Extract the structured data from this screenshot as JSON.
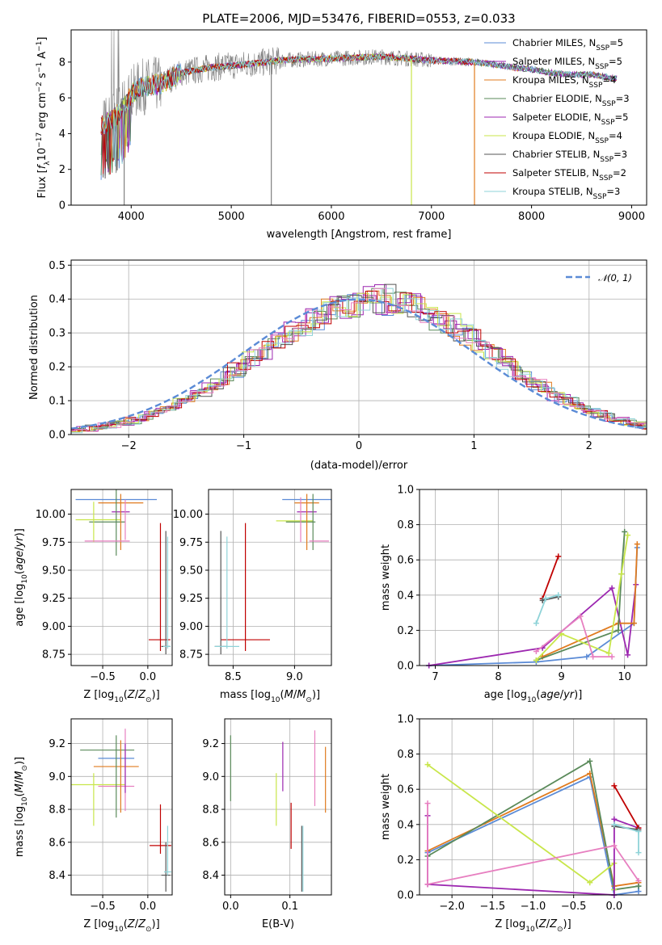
{
  "colors": {
    "Chabrier MILES": "#5b8bd6",
    "Salpeter MILES": "#9c27b0",
    "Kroupa MILES": "#e07b1f",
    "Chabrier ELODIE": "#5a8a5a",
    "Salpeter ELODIE": "#9c27b0",
    "Kroupa ELODIE": "#c8e64a",
    "Chabrier STELIB": "#555555",
    "Salpeter STELIB": "#c00000",
    "Kroupa STELIB": "#8fd3d8",
    "pink": "#e77fc0",
    "data": "#808080",
    "normal": "#5b8bd6"
  },
  "chart_data": [
    {
      "id": "spectrum",
      "type": "line",
      "title": "PLATE=2006, MJD=53476, FIBERID=0553, z=0.033",
      "xlabel": "wavelength [Angstrom, rest frame]",
      "ylabel": "Flux [f_λ10^-17 erg cm^-2 s^-1 A^-1]",
      "xlim": [
        3400,
        9150
      ],
      "ylim": [
        0,
        9.8
      ],
      "xticks": [
        4000,
        5000,
        6000,
        7000,
        8000,
        9000
      ],
      "yticks": [
        0,
        2,
        4,
        6,
        8
      ],
      "grid": false,
      "legend_position": "top-right",
      "legend": [
        {
          "name": "Chabrier MILES, N_SSP=5",
          "color": "#5b8bd6"
        },
        {
          "name": "Salpeter MILES, N_SSP=5",
          "color": "#9c27b0"
        },
        {
          "name": "Kroupa MILES, N_SSP=4",
          "color": "#e07b1f"
        },
        {
          "name": "Chabrier ELODIE, N_SSP=3",
          "color": "#5a8a5a"
        },
        {
          "name": "Salpeter ELODIE, N_SSP=5",
          "color": "#9c27b0"
        },
        {
          "name": "Kroupa ELODIE, N_SSP=4",
          "color": "#c8e64a"
        },
        {
          "name": "Chabrier STELIB, N_SSP=3",
          "color": "#555555"
        },
        {
          "name": "Salpeter STELIB, N_SSP=2",
          "color": "#c00000"
        },
        {
          "name": "Kroupa STELIB, N_SSP=3",
          "color": "#8fd3d8"
        }
      ],
      "continuum": {
        "x": [
          3700,
          3800,
          3900,
          4000,
          4100,
          4300,
          4500,
          4800,
          5000,
          5200,
          5500,
          6000,
          6500,
          7000,
          7400,
          7600,
          7800,
          8000,
          8200,
          8400,
          8600,
          8800
        ],
        "y": [
          4.4,
          4.8,
          5.2,
          6.2,
          6.6,
          6.8,
          7.4,
          7.7,
          7.8,
          7.9,
          8.1,
          8.2,
          8.3,
          8.1,
          8.0,
          7.9,
          7.7,
          7.6,
          7.4,
          7.3,
          7.3,
          7.1
        ]
      },
      "drops": [
        {
          "x": 3930,
          "to": 0
        },
        {
          "x": 5400,
          "to": 0
        },
        {
          "x": 6800,
          "to": 0
        },
        {
          "x": 7430,
          "to": 0
        }
      ]
    },
    {
      "id": "residuals",
      "type": "bar",
      "xlabel": "(data-model)/error",
      "ylabel": "Normed distribution",
      "xlim": [
        -2.5,
        2.5
      ],
      "ylim": [
        0,
        0.515
      ],
      "xticks": [
        -2,
        -1,
        0,
        1,
        2
      ],
      "yticks": [
        0.0,
        0.1,
        0.2,
        0.3,
        0.4,
        0.5
      ],
      "grid": true,
      "legend_position": "top-right",
      "legend": [
        {
          "name": "𝒩(0, 1)",
          "color": "#5b8bd6",
          "style": "dashed"
        }
      ],
      "bin_width": 0.1
    },
    {
      "id": "age-vs-Z",
      "type": "scatter",
      "xlabel": "Z [log10(Z/Z⊙)]",
      "ylabel": "age [log10(age/yr)]",
      "xlim": [
        -0.85,
        0.27
      ],
      "ylim": [
        8.65,
        10.22
      ],
      "xticks": [
        -0.5,
        0.0
      ],
      "yticks": [
        8.75,
        9.0,
        9.25,
        9.5,
        9.75,
        10.0
      ],
      "grid": true,
      "points": [
        {
          "x": -0.35,
          "y": 10.13,
          "xerr": 0.45,
          "yerr": 0.0,
          "color": "#5b8bd6"
        },
        {
          "x": -0.3,
          "y": 10.1,
          "xerr": 0.25,
          "yerr": 0.0,
          "color": "#e07b1f"
        },
        {
          "x": -0.3,
          "y": 10.02,
          "xerr": 0.1,
          "yerr": 0.0,
          "color": "#9c27b0"
        },
        {
          "x": -0.55,
          "y": 9.95,
          "xerr": 0.25,
          "yerr": 0.0,
          "color": "#c8e64a"
        },
        {
          "x": -0.45,
          "y": 9.93,
          "xerr": 0.2,
          "yerr": 0.0,
          "color": "#5a8a5a"
        },
        {
          "x": -0.35,
          "y": 9.93,
          "xerr": 0.0,
          "yerr": 0.3,
          "color": "#5a8a5a"
        },
        {
          "x": -0.3,
          "y": 9.93,
          "xerr": 0.0,
          "yerr": 0.25,
          "color": "#e07b1f"
        },
        {
          "x": -0.25,
          "y": 9.95,
          "xerr": 0.0,
          "yerr": 0.18,
          "color": "#e77fc0"
        },
        {
          "x": -0.6,
          "y": 9.93,
          "xerr": 0.0,
          "yerr": 0.18,
          "color": "#c8e64a"
        },
        {
          "x": -0.45,
          "y": 9.76,
          "xerr": 0.25,
          "yerr": 0.0,
          "color": "#e77fc0"
        },
        {
          "x": 0.13,
          "y": 8.88,
          "xerr": 0.12,
          "yerr": 0.0,
          "color": "#c00000"
        },
        {
          "x": 0.14,
          "y": 9.35,
          "xerr": 0.0,
          "yerr": 0.57,
          "color": "#c00000"
        },
        {
          "x": 0.2,
          "y": 9.3,
          "xerr": 0.0,
          "yerr": 0.55,
          "color": "#555555"
        },
        {
          "x": 0.2,
          "y": 8.82,
          "xerr": 0.05,
          "yerr": 0.0,
          "color": "#555555"
        },
        {
          "x": 0.22,
          "y": 9.3,
          "xerr": 0.0,
          "yerr": 0.5,
          "color": "#8fd3d8"
        },
        {
          "x": 0.21,
          "y": 8.82,
          "xerr": 0.04,
          "yerr": 0.0,
          "color": "#8fd3d8"
        }
      ]
    },
    {
      "id": "age-vs-mass",
      "type": "scatter",
      "xlabel": "mass [log10(M/M⊙)]",
      "ylabel": "",
      "xlim": [
        8.3,
        9.3
      ],
      "ylim": [
        8.65,
        10.22
      ],
      "xticks": [
        8.5,
        9.0
      ],
      "yticks": [
        8.75,
        9.0,
        9.25,
        9.5,
        9.75,
        10.0
      ],
      "grid": true,
      "points": [
        {
          "x": 9.1,
          "y": 10.13,
          "xerr": 0.2,
          "yerr": 0.0,
          "color": "#5b8bd6"
        },
        {
          "x": 9.1,
          "y": 10.1,
          "xerr": 0.1,
          "yerr": 0.0,
          "color": "#e07b1f"
        },
        {
          "x": 9.1,
          "y": 10.02,
          "xerr": 0.08,
          "yerr": 0.0,
          "color": "#9c27b0"
        },
        {
          "x": 9.0,
          "y": 9.94,
          "xerr": 0.15,
          "yerr": 0.0,
          "color": "#c8e64a"
        },
        {
          "x": 9.05,
          "y": 9.93,
          "xerr": 0.12,
          "yerr": 0.0,
          "color": "#5a8a5a"
        },
        {
          "x": 9.1,
          "y": 9.93,
          "xerr": 0.0,
          "yerr": 0.25,
          "color": "#e07b1f"
        },
        {
          "x": 9.15,
          "y": 9.93,
          "xerr": 0.0,
          "yerr": 0.25,
          "color": "#5a8a5a"
        },
        {
          "x": 9.05,
          "y": 9.95,
          "xerr": 0.0,
          "yerr": 0.2,
          "color": "#e77fc0"
        },
        {
          "x": 9.2,
          "y": 9.76,
          "xerr": 0.08,
          "yerr": 0.0,
          "color": "#e77fc0"
        },
        {
          "x": 8.6,
          "y": 8.88,
          "xerr": 0.2,
          "yerr": 0.0,
          "color": "#c00000"
        },
        {
          "x": 8.6,
          "y": 9.35,
          "xerr": 0.0,
          "yerr": 0.57,
          "color": "#c00000"
        },
        {
          "x": 8.4,
          "y": 9.3,
          "xerr": 0.0,
          "yerr": 0.55,
          "color": "#555555"
        },
        {
          "x": 8.4,
          "y": 8.82,
          "xerr": 0.05,
          "yerr": 0.0,
          "color": "#555555"
        },
        {
          "x": 8.45,
          "y": 9.3,
          "xerr": 0.0,
          "yerr": 0.5,
          "color": "#8fd3d8"
        },
        {
          "x": 8.45,
          "y": 8.82,
          "xerr": 0.1,
          "yerr": 0.0,
          "color": "#8fd3d8"
        }
      ]
    },
    {
      "id": "weight-vs-age",
      "type": "line",
      "xlabel": "age [log10(age/yr)]",
      "ylabel": "mass weight",
      "xlim": [
        6.75,
        10.35
      ],
      "ylim": [
        0,
        1.0
      ],
      "xticks": [
        7,
        8,
        9,
        10
      ],
      "yticks": [
        0.0,
        0.2,
        0.4,
        0.6,
        0.8,
        1.0
      ],
      "grid": true,
      "series": [
        {
          "color": "#5b8bd6",
          "x": [
            6.9,
            8.6,
            9.4,
            10.15,
            10.2
          ],
          "y": [
            0.0,
            0.02,
            0.05,
            0.24,
            0.67
          ]
        },
        {
          "color": "#9c27b0",
          "x": [
            6.9,
            8.7,
            9.8,
            10.05,
            10.18
          ],
          "y": [
            0.0,
            0.1,
            0.44,
            0.06,
            0.46
          ]
        },
        {
          "color": "#e07b1f",
          "x": [
            8.7,
            9.9,
            10.15,
            10.2
          ],
          "y": [
            0.05,
            0.24,
            0.24,
            0.69
          ]
        },
        {
          "color": "#5a8a5a",
          "x": [
            8.6,
            9.9,
            9.95,
            10.0
          ],
          "y": [
            0.03,
            0.2,
            0.52,
            0.76
          ]
        },
        {
          "color": "#c8e64a",
          "x": [
            8.6,
            9.0,
            9.75,
            9.95,
            10.05
          ],
          "y": [
            0.03,
            0.18,
            0.07,
            0.52,
            0.74
          ]
        },
        {
          "color": "#e77fc0",
          "x": [
            8.6,
            9.3,
            9.5,
            9.8
          ],
          "y": [
            0.08,
            0.28,
            0.05,
            0.05
          ]
        },
        {
          "color": "#c00000",
          "x": [
            8.7,
            8.95
          ],
          "y": [
            0.38,
            0.62
          ]
        },
        {
          "color": "#555555",
          "x": [
            8.7,
            8.95
          ],
          "y": [
            0.37,
            0.39
          ]
        },
        {
          "color": "#8fd3d8",
          "x": [
            8.6,
            8.75,
            8.95
          ],
          "y": [
            0.24,
            0.38,
            0.4
          ]
        }
      ]
    },
    {
      "id": "mass-vs-Z",
      "type": "scatter",
      "xlabel": "Z [log10(Z/Z⊙)]",
      "ylabel": "mass [log10(M/M⊙)]",
      "xlim": [
        -0.85,
        0.27
      ],
      "ylim": [
        8.28,
        9.35
      ],
      "xticks": [
        -0.5,
        0.0
      ],
      "yticks": [
        8.4,
        8.6,
        8.8,
        9.0,
        9.2
      ],
      "grid": true,
      "points": [
        {
          "x": -0.45,
          "y": 9.16,
          "xerr": 0.3,
          "yerr": 0.0,
          "color": "#5a8a5a"
        },
        {
          "x": -0.35,
          "y": 9.11,
          "xerr": 0.2,
          "yerr": 0.0,
          "color": "#5b8bd6"
        },
        {
          "x": -0.35,
          "y": 9.06,
          "xerr": 0.25,
          "yerr": 0.0,
          "color": "#e07b1f"
        },
        {
          "x": -0.55,
          "y": 8.95,
          "xerr": 0.3,
          "yerr": 0.0,
          "color": "#c8e64a"
        },
        {
          "x": -0.35,
          "y": 8.94,
          "xerr": 0.2,
          "yerr": 0.0,
          "color": "#e77fc0"
        },
        {
          "x": -0.35,
          "y": 9.0,
          "xerr": 0.0,
          "yerr": 0.25,
          "color": "#5a8a5a"
        },
        {
          "x": -0.3,
          "y": 9.0,
          "xerr": 0.0,
          "yerr": 0.22,
          "color": "#e07b1f"
        },
        {
          "x": -0.25,
          "y": 9.04,
          "xerr": 0.0,
          "yerr": 0.25,
          "color": "#e77fc0"
        },
        {
          "x": -0.25,
          "y": 9.05,
          "xerr": 0.0,
          "yerr": 0.15,
          "color": "#9c27b0"
        },
        {
          "x": -0.6,
          "y": 8.86,
          "xerr": 0.0,
          "yerr": 0.16,
          "color": "#c8e64a"
        },
        {
          "x": 0.14,
          "y": 8.58,
          "xerr": 0.12,
          "yerr": 0.0,
          "color": "#c00000"
        },
        {
          "x": 0.14,
          "y": 8.68,
          "xerr": 0.0,
          "yerr": 0.15,
          "color": "#c00000"
        },
        {
          "x": 0.2,
          "y": 8.4,
          "xerr": 0.05,
          "yerr": 0.0,
          "color": "#555555"
        },
        {
          "x": 0.2,
          "y": 8.45,
          "xerr": 0.0,
          "yerr": 0.15,
          "color": "#555555"
        },
        {
          "x": 0.22,
          "y": 8.42,
          "xerr": 0.04,
          "yerr": 0.0,
          "color": "#8fd3d8"
        },
        {
          "x": 0.22,
          "y": 8.55,
          "xerr": 0.0,
          "yerr": 0.15,
          "color": "#8fd3d8"
        }
      ]
    },
    {
      "id": "mass-vs-ebv",
      "type": "scatter",
      "xlabel": "E(B-V)",
      "ylabel": "",
      "xlim": [
        -0.01,
        0.17
      ],
      "ylim": [
        8.28,
        9.35
      ],
      "xticks": [
        0.0,
        0.1
      ],
      "yticks": [
        8.4,
        8.6,
        8.8,
        9.0,
        9.2
      ],
      "grid": true,
      "points": [
        {
          "x": 0.0,
          "y": 9.05,
          "xerr": 0.0,
          "yerr": 0.2,
          "color": "#5a8a5a"
        },
        {
          "x": 0.077,
          "y": 8.86,
          "xerr": 0.0,
          "yerr": 0.16,
          "color": "#c8e64a"
        },
        {
          "x": 0.088,
          "y": 9.06,
          "xerr": 0.0,
          "yerr": 0.15,
          "color": "#9c27b0"
        },
        {
          "x": 0.102,
          "y": 8.7,
          "xerr": 0.0,
          "yerr": 0.14,
          "color": "#c00000"
        },
        {
          "x": 0.12,
          "y": 8.5,
          "xerr": 0.0,
          "yerr": 0.2,
          "color": "#555555"
        },
        {
          "x": 0.122,
          "y": 8.5,
          "xerr": 0.0,
          "yerr": 0.2,
          "color": "#8fd3d8"
        },
        {
          "x": 0.142,
          "y": 9.05,
          "xerr": 0.0,
          "yerr": 0.23,
          "color": "#e77fc0"
        },
        {
          "x": 0.16,
          "y": 8.98,
          "xerr": 0.0,
          "yerr": 0.2,
          "color": "#e07b1f"
        }
      ]
    },
    {
      "id": "weight-vs-Z",
      "type": "line",
      "xlabel": "Z [log10(Z/Z⊙)]",
      "ylabel": "mass weight",
      "xlim": [
        -2.4,
        0.4
      ],
      "ylim": [
        0,
        1.0
      ],
      "xticks": [
        -2.0,
        -1.5,
        -1.0,
        -0.5,
        0.0
      ],
      "yticks": [
        0.0,
        0.2,
        0.4,
        0.6,
        0.8,
        1.0
      ],
      "grid": true,
      "series": [
        {
          "color": "#5b8bd6",
          "x": [
            -2.3,
            -0.3,
            0.0,
            0.3,
            0.3
          ],
          "y": [
            0.24,
            0.67,
            0.0,
            0.02,
            0.05
          ]
        },
        {
          "color": "#e07b1f",
          "x": [
            -2.3,
            -0.3,
            0.0,
            0.3
          ],
          "y": [
            0.25,
            0.69,
            0.05,
            0.07
          ]
        },
        {
          "color": "#5a8a5a",
          "x": [
            -2.3,
            -0.3,
            0.0,
            0.3
          ],
          "y": [
            0.22,
            0.76,
            0.03,
            0.05
          ]
        },
        {
          "color": "#c8e64a",
          "x": [
            -2.3,
            -0.3,
            0.0,
            0.0
          ],
          "y": [
            0.74,
            0.07,
            0.18,
            0.03
          ]
        },
        {
          "color": "#9c27b0",
          "x": [
            -2.3,
            -2.3,
            0.0,
            0.0,
            0.3
          ],
          "y": [
            0.45,
            0.06,
            0.0,
            0.43,
            0.38
          ]
        },
        {
          "color": "#e77fc0",
          "x": [
            -2.3,
            -2.3,
            0.0,
            0.3
          ],
          "y": [
            0.52,
            0.06,
            0.28,
            0.08
          ]
        },
        {
          "color": "#c00000",
          "x": [
            0.0,
            0.3
          ],
          "y": [
            0.62,
            0.38
          ]
        },
        {
          "color": "#555555",
          "x": [
            0.0,
            0.3
          ],
          "y": [
            0.39,
            0.37
          ]
        },
        {
          "color": "#8fd3d8",
          "x": [
            0.0,
            0.3,
            0.3
          ],
          "y": [
            0.4,
            0.36,
            0.24
          ]
        }
      ]
    }
  ]
}
